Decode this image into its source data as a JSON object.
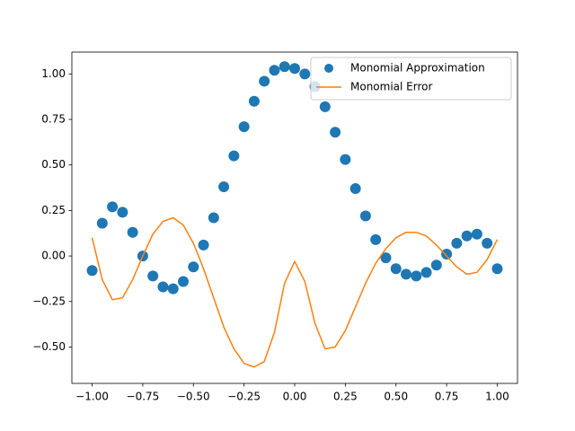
{
  "chart_data": {
    "type": "line",
    "x": [
      -1,
      -0.95,
      -0.9,
      -0.85,
      -0.8,
      -0.75,
      -0.7,
      -0.65,
      -0.6,
      -0.55,
      -0.5,
      -0.45,
      -0.4,
      -0.35,
      -0.3,
      -0.25,
      -0.2,
      -0.15,
      -0.1,
      -0.05,
      0,
      0.05,
      0.1,
      0.15,
      0.2,
      0.25,
      0.3,
      0.35,
      0.4,
      0.45,
      0.5,
      0.55,
      0.6,
      0.65,
      0.7,
      0.75,
      0.8,
      0.85,
      0.9,
      0.95,
      1
    ],
    "series": [
      {
        "name": "Monomial Approximation",
        "type": "scatter",
        "color": "#1f77b4",
        "values": [
          -0.08,
          0.18,
          0.27,
          0.24,
          0.13,
          0.0,
          -0.11,
          -0.17,
          -0.18,
          -0.14,
          -0.06,
          0.06,
          0.21,
          0.38,
          0.55,
          0.71,
          0.85,
          0.96,
          1.02,
          1.04,
          1.03,
          1.0,
          0.93,
          0.82,
          0.68,
          0.53,
          0.37,
          0.22,
          0.09,
          -0.01,
          -0.07,
          -0.1,
          -0.11,
          -0.09,
          -0.05,
          0.01,
          0.07,
          0.11,
          0.12,
          0.07,
          -0.07
        ]
      },
      {
        "name": "Monomial Error",
        "type": "line",
        "color": "#ff7f0e",
        "values": [
          0.1,
          -0.13,
          -0.24,
          -0.23,
          -0.13,
          0.0,
          0.12,
          0.19,
          0.21,
          0.17,
          0.07,
          -0.07,
          -0.23,
          -0.39,
          -0.51,
          -0.59,
          -0.61,
          -0.58,
          -0.42,
          -0.15,
          -0.03,
          -0.14,
          -0.37,
          -0.51,
          -0.5,
          -0.41,
          -0.28,
          -0.15,
          -0.04,
          0.04,
          0.1,
          0.13,
          0.13,
          0.11,
          0.06,
          0.0,
          -0.06,
          -0.1,
          -0.09,
          -0.02,
          0.09
        ]
      }
    ],
    "xlim": [
      -1.1,
      1.1
    ],
    "ylim": [
      -0.7,
      1.12
    ],
    "xticks": [
      {
        "value": -1,
        "label": "−1.00"
      },
      {
        "value": -0.75,
        "label": "−0.75"
      },
      {
        "value": -0.5,
        "label": "−0.50"
      },
      {
        "value": -0.25,
        "label": "−0.25"
      },
      {
        "value": 0,
        "label": "0.00"
      },
      {
        "value": 0.25,
        "label": "0.25"
      },
      {
        "value": 0.5,
        "label": "0.50"
      },
      {
        "value": 0.75,
        "label": "0.75"
      },
      {
        "value": 1,
        "label": "1.00"
      }
    ],
    "yticks": [
      {
        "value": -0.5,
        "label": "−0.50"
      },
      {
        "value": -0.25,
        "label": "−0.25"
      },
      {
        "value": 0,
        "label": "0.00"
      },
      {
        "value": 0.25,
        "label": "0.25"
      },
      {
        "value": 0.5,
        "label": "0.50"
      },
      {
        "value": 0.75,
        "label": "0.75"
      },
      {
        "value": 1,
        "label": "1.00"
      }
    ],
    "grid": false,
    "legend": "upper right"
  }
}
